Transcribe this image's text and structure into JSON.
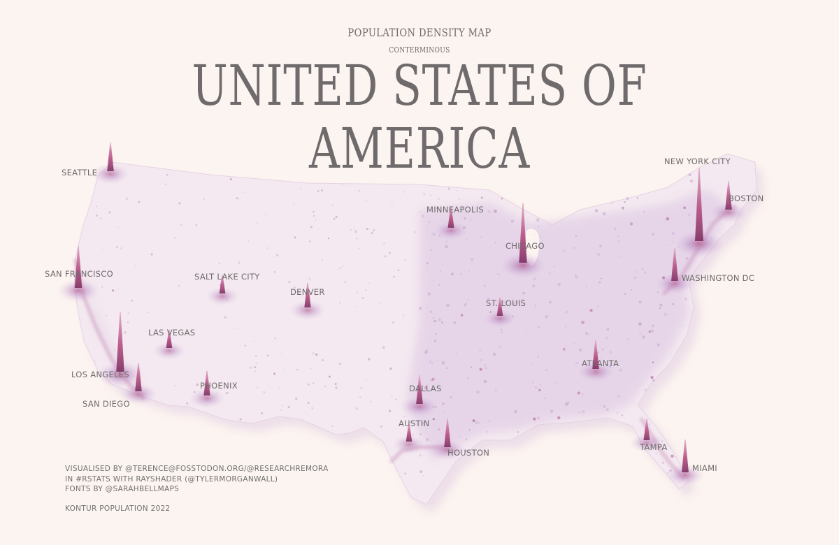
{
  "header": {
    "kicker": "POPULATION DENSITY MAP",
    "subkicker": "CONTERMINOUS",
    "title": "UNITED STATES OF AMERICA"
  },
  "colors": {
    "background": "#fcf4f0",
    "land": "#f3e7ef",
    "density_low": "#dcc6e2",
    "density_high": "#b25a8c",
    "text": "#6e6a6c"
  },
  "cities": [
    {
      "name": "SEATTLE",
      "label": "SEATTLE",
      "lon": -122.33,
      "lat": 47.61,
      "intensity": 0.6
    },
    {
      "name": "SAN FRANCISCO",
      "label": "SAN FRANCISCO",
      "lon": -122.42,
      "lat": 37.77,
      "intensity": 0.75
    },
    {
      "name": "LOS ANGELES",
      "label": "LOS ANGELES",
      "lon": -118.24,
      "lat": 34.05,
      "intensity": 0.9
    },
    {
      "name": "SAN DIEGO",
      "label": "SAN DIEGO",
      "lon": -117.16,
      "lat": 32.72,
      "intensity": 0.6
    },
    {
      "name": "LAS VEGAS",
      "label": "LAS VEGAS",
      "lon": -115.14,
      "lat": 36.17,
      "intensity": 0.45
    },
    {
      "name": "PHOENIX",
      "label": "PHOENIX",
      "lon": -112.07,
      "lat": 33.45,
      "intensity": 0.55
    },
    {
      "name": "SALT LAKE CITY",
      "label": "SALT LAKE CITY",
      "lon": -111.89,
      "lat": 40.76,
      "intensity": 0.45
    },
    {
      "name": "DENVER",
      "label": "DENVER",
      "lon": -104.99,
      "lat": 39.74,
      "intensity": 0.55
    },
    {
      "name": "MINNEAPOLIS",
      "label": "MINNEAPOLIS",
      "lon": -93.27,
      "lat": 44.98,
      "intensity": 0.5
    },
    {
      "name": "CHICAGO",
      "label": "CHICAGO",
      "lon": -87.63,
      "lat": 41.88,
      "intensity": 0.9
    },
    {
      "name": "ST. LOUIS",
      "label": "ST. LOUIS",
      "lon": -90.2,
      "lat": 38.63,
      "intensity": 0.45
    },
    {
      "name": "DALLAS",
      "label": "DALLAS",
      "lon": -96.8,
      "lat": 32.78,
      "intensity": 0.6
    },
    {
      "name": "AUSTIN",
      "label": "AUSTIN",
      "lon": -97.74,
      "lat": 30.27,
      "intensity": 0.45
    },
    {
      "name": "HOUSTON",
      "label": "HOUSTON",
      "lon": -95.37,
      "lat": 29.76,
      "intensity": 0.6
    },
    {
      "name": "ATLANTA",
      "label": "ATLANTA",
      "lon": -84.39,
      "lat": 33.75,
      "intensity": 0.6
    },
    {
      "name": "TAMPA",
      "label": "TAMPA",
      "lon": -82.46,
      "lat": 27.95,
      "intensity": 0.5
    },
    {
      "name": "MIAMI",
      "label": "MIAMI",
      "lon": -80.19,
      "lat": 25.76,
      "intensity": 0.65
    },
    {
      "name": "WASHINGTON DC",
      "label": "WASHINGTON DC",
      "lon": -77.04,
      "lat": 38.91,
      "intensity": 0.65
    },
    {
      "name": "NEW YORK CITY",
      "label": "NEW YORK CITY",
      "lon": -74.0,
      "lat": 40.71,
      "intensity": 1.0
    },
    {
      "name": "BOSTON",
      "label": "BOSTON",
      "lon": -71.06,
      "lat": 42.36,
      "intensity": 0.6
    }
  ],
  "credits": {
    "line1": "VISUALISED BY @TERENCE@FOSSTODON.ORG/@RESEARCHREMORA",
    "line2": "IN #RSTATS WITH RAYSHADER (@TYLERMORGANWALL)",
    "line3": "FONTS BY @SARAHBELLMAPS",
    "source": "KONTUR POPULATION 2022"
  }
}
